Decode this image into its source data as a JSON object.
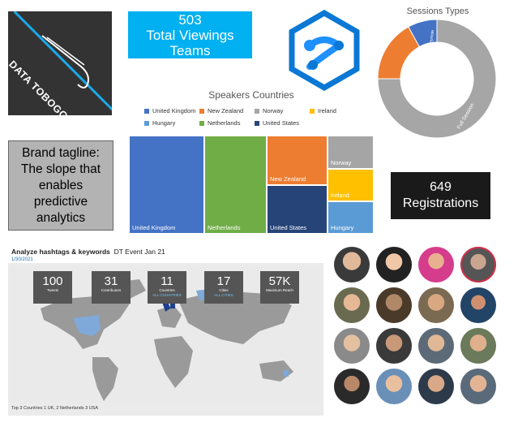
{
  "logo": {
    "text": "DATA TOBOGGAN"
  },
  "viewings": {
    "number": "503",
    "line1": "Total Viewings",
    "line2": "Teams"
  },
  "sessions_chart": {
    "title": "Sessions Types",
    "labels": {
      "keynote": "Keynote",
      "lightning": "Lightning Talks",
      "full": "Full Session"
    }
  },
  "speakers_chart": {
    "title": "Speakers Countries",
    "legend": [
      "United Kingdom",
      "New Zealand",
      "Norway",
      "Ireland",
      "Hungary",
      "Netherlands",
      "United States"
    ],
    "tiles": {
      "uk": "United Kingdom",
      "nl": "Netherlands",
      "nz": "New Zealand",
      "us": "United States",
      "no": "Norway",
      "ie": "Ireland",
      "hu": "Hungary"
    }
  },
  "chart_data": [
    {
      "type": "pie",
      "title": "Sessions Types",
      "categories": [
        "Full Session",
        "Lightning Talks",
        "Keynote"
      ],
      "values": [
        75,
        17,
        8
      ],
      "colors": [
        "#a6a6a6",
        "#ed7d31",
        "#4472c4"
      ]
    },
    {
      "type": "heatmap",
      "title": "Speakers Countries",
      "categories": [
        "United Kingdom",
        "Netherlands",
        "New Zealand",
        "United States",
        "Norway",
        "Ireland",
        "Hungary"
      ],
      "values": [
        6,
        5,
        3,
        3,
        1,
        1,
        1
      ],
      "colors": [
        "#4472c4",
        "#70ad47",
        "#ed7d31",
        "#264478",
        "#a5a5a5",
        "#ffc000",
        "#5b9bd5"
      ]
    }
  ],
  "tagline": {
    "text": "Brand tagline: The slope that enables predictive analytics"
  },
  "registrations": {
    "number": "649",
    "label": "Registrations"
  },
  "dashboard": {
    "title_bold": "Analyze hashtags & keywords",
    "title_rest": "DT Event Jan 21",
    "date": "1/30/2021",
    "stats": [
      {
        "value": "100",
        "label": "Tweets",
        "sub": ""
      },
      {
        "value": "31",
        "label": "Contributors",
        "sub": ""
      },
      {
        "value": "11",
        "label": "Countries",
        "sub": "ALL COUNTRIES"
      },
      {
        "value": "17",
        "label": "Cities",
        "sub": "ALL CITIES"
      },
      {
        "value": "57K",
        "label": "Maximum Reach",
        "sub": ""
      }
    ],
    "footer": "Top 3 Countries   1 UK,  2 Netherlands  3 USA"
  },
  "colors": {
    "accent": "#00b0f0",
    "dark": "#333333",
    "registrations_bg": "#1a1a1a"
  }
}
